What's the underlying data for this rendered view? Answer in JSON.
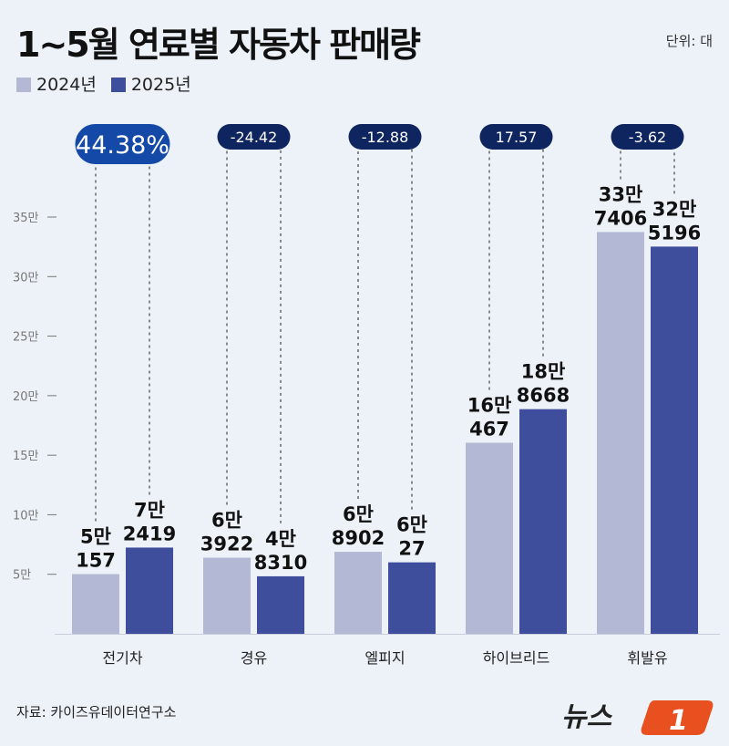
{
  "title": "1~5월 연료별 자동차 판매량",
  "unit": "단위: 대",
  "source": "자료: 카이즈유데이터연구소",
  "logo": "뉴스1",
  "colors": {
    "y2024": "#b3b9d4",
    "y2025": "#3e4e9c",
    "badge_highlight": "#1449a8",
    "badge": "#0f2560"
  },
  "chart_data": {
    "type": "bar",
    "title": "1~5월 연료별 자동차 판매량",
    "categories": [
      "전기차",
      "경유",
      "엘피지",
      "하이브리드",
      "휘발유"
    ],
    "series": [
      {
        "name": "2024년",
        "values": [
          50157,
          63922,
          68902,
          160467,
          337406
        ],
        "labels": [
          [
            "5만",
            "157"
          ],
          [
            "6만",
            "3922"
          ],
          [
            "6만",
            "8902"
          ],
          [
            "16만",
            "467"
          ],
          [
            "33만",
            "7406"
          ]
        ]
      },
      {
        "name": "2025년",
        "values": [
          72419,
          48310,
          60027,
          188668,
          325196
        ],
        "labels": [
          [
            "7만",
            "2419"
          ],
          [
            "4만",
            "8310"
          ],
          [
            "6만",
            "27"
          ],
          [
            "18만",
            "8668"
          ],
          [
            "32만",
            "5196"
          ]
        ]
      }
    ],
    "changes": [
      "44.38%",
      "-24.42",
      "-12.88",
      "17.57",
      "-3.62"
    ],
    "yticks": [
      "5만",
      "10만",
      "15만",
      "20만",
      "25만",
      "30만",
      "35만"
    ],
    "ytick_values": [
      50000,
      100000,
      150000,
      200000,
      250000,
      300000,
      350000
    ],
    "ylim": [
      0,
      350000
    ],
    "grid": false,
    "legend": "top-left"
  }
}
